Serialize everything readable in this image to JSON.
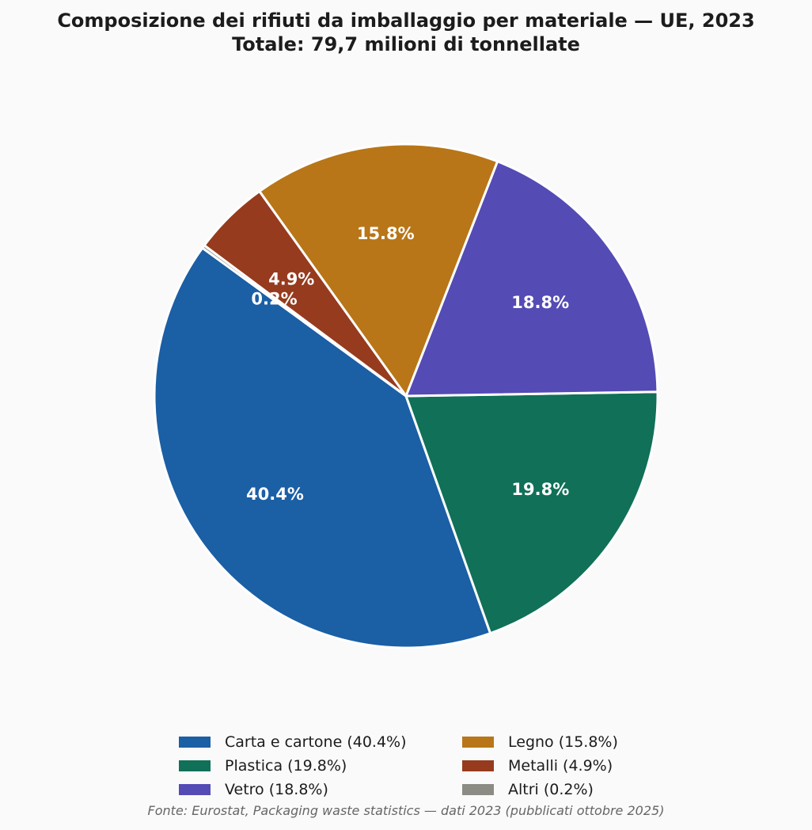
{
  "title_line1": "Composizione dei rifiuti da imballaggio per materiale — UE, 2023",
  "title_line2": "Totale: 79,7 milioni di tonnellate",
  "source": "Fonte: Eurostat, Packaging waste statistics — dati 2023 (pubblicati ottobre 2025)",
  "chart_data": {
    "type": "pie",
    "title": "Composizione dei rifiuti da imballaggio per materiale — UE, 2023",
    "subtitle": "Totale: 79,7 milioni di tonnellate",
    "unit": "%",
    "start_angle_deg": 144,
    "direction": "counterclockwise",
    "legend_position": "bottom",
    "slices": [
      {
        "label": "Carta e cartone",
        "value": 40.4,
        "pct_label": "40.4%",
        "legend": "Carta e cartone  (40.4%)",
        "color": "#1b5fa5"
      },
      {
        "label": "Plastica",
        "value": 19.8,
        "pct_label": "19.8%",
        "legend": "Plastica  (19.8%)",
        "color": "#107058"
      },
      {
        "label": "Vetro",
        "value": 18.8,
        "pct_label": "18.8%",
        "legend": "Vetro  (18.8%)",
        "color": "#544bb5"
      },
      {
        "label": "Legno",
        "value": 15.8,
        "pct_label": "15.8%",
        "legend": "Legno  (15.8%)",
        "color": "#b87618"
      },
      {
        "label": "Metalli",
        "value": 4.9,
        "pct_label": "4.9%",
        "legend": "Metalli  (4.9%)",
        "color": "#963b1e"
      },
      {
        "label": "Altri",
        "value": 0.2,
        "pct_label": "0.2%",
        "legend": "Altri  (0.2%)",
        "color": "#8c8c84"
      }
    ]
  }
}
